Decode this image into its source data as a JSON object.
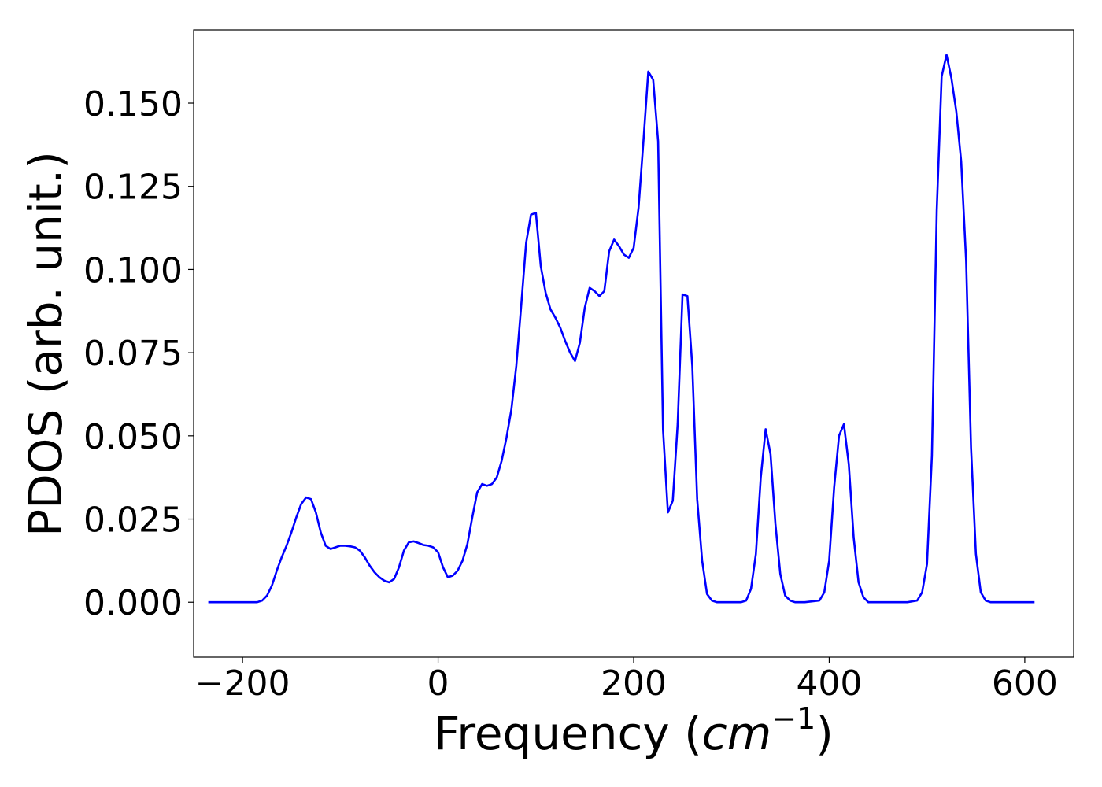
{
  "chart_data": {
    "type": "line",
    "xlabel": "Frequency",
    "xlabel_unit_base": "cm",
    "xlabel_unit_exp": "−1",
    "ylabel": "PDOS (arb. unit.)",
    "xlim": [
      -250,
      650
    ],
    "ylim": [
      -0.0165,
      0.172
    ],
    "x_ticks": [
      -200,
      0,
      200,
      400,
      600
    ],
    "x_tick_labels": [
      "−200",
      "0",
      "200",
      "400",
      "600"
    ],
    "y_ticks": [
      0.0,
      0.025,
      0.05,
      0.075,
      0.1,
      0.125,
      0.15
    ],
    "y_tick_labels": [
      "0.000",
      "0.025",
      "0.050",
      "0.075",
      "0.100",
      "0.125",
      "0.150"
    ],
    "grid": false,
    "series": [
      {
        "color": "#0000ff",
        "x": [
          -235,
          -200,
          -185,
          -180,
          -175,
          -170,
          -165,
          -160,
          -155,
          -150,
          -145,
          -140,
          -135,
          -130,
          -125,
          -120,
          -115,
          -110,
          -105,
          -100,
          -95,
          -90,
          -85,
          -80,
          -75,
          -70,
          -65,
          -60,
          -55,
          -50,
          -45,
          -40,
          -35,
          -30,
          -25,
          -20,
          -15,
          -10,
          -5,
          0,
          5,
          10,
          15,
          20,
          25,
          30,
          35,
          40,
          45,
          50,
          55,
          60,
          65,
          70,
          75,
          80,
          85,
          90,
          95,
          100,
          105,
          110,
          115,
          120,
          125,
          130,
          135,
          140,
          145,
          150,
          155,
          160,
          165,
          170,
          175,
          180,
          185,
          190,
          195,
          200,
          205,
          210,
          215,
          220,
          225,
          230,
          235,
          240,
          245,
          250,
          255,
          260,
          265,
          270,
          275,
          280,
          285,
          290,
          300,
          310,
          315,
          320,
          325,
          330,
          335,
          340,
          345,
          350,
          355,
          360,
          365,
          370,
          375,
          390,
          395,
          400,
          405,
          410,
          415,
          420,
          425,
          430,
          435,
          440,
          445,
          450,
          480,
          490,
          495,
          500,
          505,
          510,
          515,
          520,
          525,
          530,
          535,
          540,
          545,
          550,
          555,
          560,
          565,
          570,
          610
        ],
        "y": [
          0,
          0,
          0,
          0.0005,
          0.002,
          0.005,
          0.0095,
          0.0135,
          0.017,
          0.021,
          0.0255,
          0.0295,
          0.0315,
          0.031,
          0.027,
          0.021,
          0.017,
          0.016,
          0.0165,
          0.017,
          0.017,
          0.0168,
          0.0165,
          0.0155,
          0.0135,
          0.011,
          0.009,
          0.0075,
          0.0065,
          0.006,
          0.007,
          0.0105,
          0.0155,
          0.018,
          0.0183,
          0.0178,
          0.0172,
          0.017,
          0.0165,
          0.015,
          0.0105,
          0.0075,
          0.008,
          0.0095,
          0.0125,
          0.0175,
          0.0255,
          0.033,
          0.0355,
          0.035,
          0.0355,
          0.0375,
          0.0425,
          0.0495,
          0.058,
          0.071,
          0.089,
          0.108,
          0.1165,
          0.117,
          0.101,
          0.093,
          0.088,
          0.0855,
          0.0825,
          0.0785,
          0.075,
          0.0725,
          0.078,
          0.0885,
          0.0945,
          0.0935,
          0.092,
          0.0935,
          0.1055,
          0.109,
          0.107,
          0.1045,
          0.1035,
          0.1065,
          0.1185,
          0.1385,
          0.1595,
          0.157,
          0.1385,
          0.052,
          0.027,
          0.0305,
          0.0535,
          0.0925,
          0.092,
          0.071,
          0.031,
          0.0125,
          0.0025,
          0.0005,
          0,
          0,
          0,
          0,
          0.0005,
          0.004,
          0.0145,
          0.0375,
          0.052,
          0.0445,
          0.0235,
          0.0085,
          0.002,
          0.0005,
          0,
          0,
          0,
          0.0005,
          0.003,
          0.0125,
          0.0345,
          0.05,
          0.0535,
          0.0415,
          0.0195,
          0.006,
          0.0015,
          0,
          0,
          0,
          0,
          0.0005,
          0.003,
          0.0115,
          0.044,
          0.118,
          0.158,
          0.1645,
          0.1575,
          0.1475,
          0.1325,
          0.1025,
          0.0465,
          0.0145,
          0.003,
          0.0005,
          0,
          0,
          0
        ]
      }
    ]
  }
}
